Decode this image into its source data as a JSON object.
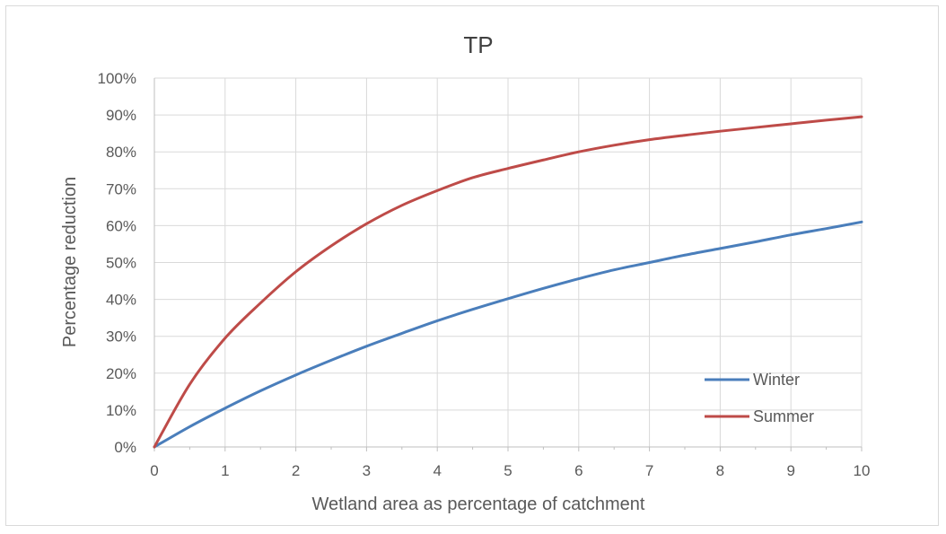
{
  "chart_data": {
    "type": "line",
    "title": "TP",
    "xlabel": "Wetland area as percentage of catchment",
    "ylabel": "Percentage reduction",
    "xlim": [
      0,
      10
    ],
    "ylim": [
      0,
      100
    ],
    "x_ticks": [
      "0",
      "1",
      "2",
      "3",
      "4",
      "5",
      "6",
      "7",
      "8",
      "9",
      "10"
    ],
    "y_ticks": [
      "0%",
      "10%",
      "20%",
      "30%",
      "40%",
      "50%",
      "60%",
      "70%",
      "80%",
      "90%",
      "100%"
    ],
    "grid": true,
    "legend_position": "bottom-right",
    "x": [
      0,
      0.5,
      1,
      1.5,
      2,
      2.5,
      3,
      3.5,
      4,
      4.5,
      5,
      5.5,
      6,
      6.5,
      7,
      7.5,
      8,
      8.5,
      9,
      9.5,
      10
    ],
    "series": [
      {
        "name": "Winter",
        "color": "#4a7ebb",
        "values": [
          0,
          5.5,
          10.5,
          15.2,
          19.5,
          23.5,
          27.3,
          30.8,
          34.2,
          37.3,
          40.2,
          43.0,
          45.6,
          48.0,
          50.0,
          52.0,
          53.8,
          55.6,
          57.5,
          59.2,
          61.0
        ]
      },
      {
        "name": "Summer",
        "color": "#be4b48",
        "values": [
          0,
          17.0,
          29.5,
          39.0,
          47.5,
          54.5,
          60.5,
          65.5,
          69.5,
          73.0,
          75.5,
          77.8,
          80.0,
          81.8,
          83.3,
          84.5,
          85.6,
          86.6,
          87.6,
          88.6,
          89.5
        ]
      }
    ]
  }
}
